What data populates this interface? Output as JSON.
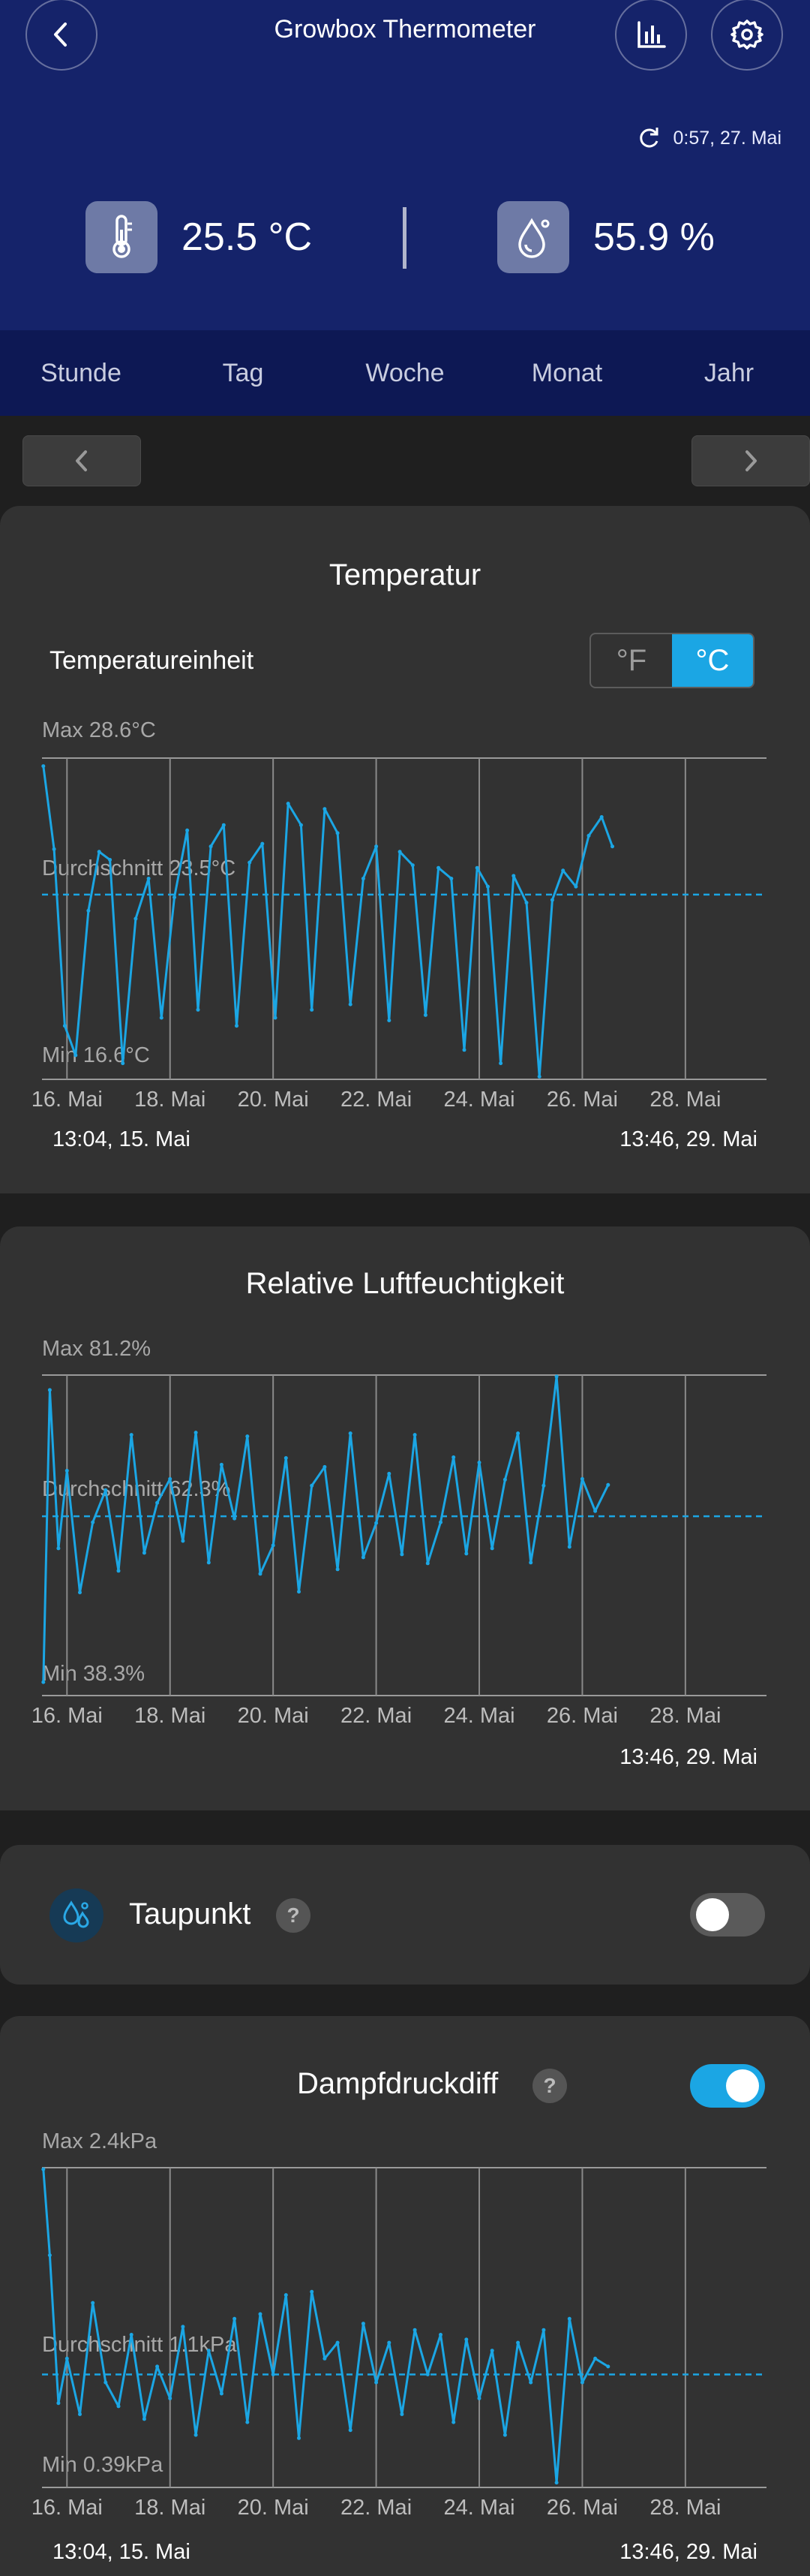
{
  "header": {
    "title": "Growbox Thermometer",
    "sync_text": "0:57,  27. Mai",
    "temperature": "25.5 °C",
    "humidity": "55.9 %",
    "icons": {
      "back": "back-arrow-icon",
      "stats": "bar-chart-icon",
      "settings": "gear-icon",
      "sync": "refresh-icon",
      "thermo": "thermometer-icon",
      "drop": "droplet-icon"
    }
  },
  "tabs": [
    "Stunde",
    "Tag",
    "Woche",
    "Monat",
    "Jahr"
  ],
  "colors": {
    "header": "#15236a",
    "tabs": "#0d1854",
    "accent": "#1ba6e4",
    "card": "#323232",
    "background": "#1f1f1f"
  },
  "temperature_card": {
    "title": "Temperatur",
    "unit_label": "Temperatureinheit",
    "unit_options": [
      "°F",
      "°C"
    ],
    "unit_selected": "°C",
    "max_label": "Max 28.6°C",
    "avg_label": "Durchschnitt 23.5°C",
    "min_label": "Min 16.6°C",
    "start": "13:04,  15. Mai",
    "end": "13:46,  29. Mai"
  },
  "humidity_card": {
    "title": "Relative Luftfeuchtigkeit",
    "max_label": "Max 81.2%",
    "avg_label": "Durchschnitt 62.3%",
    "min_label": "Min 38.3%",
    "end": "13:46,  29. Mai"
  },
  "dewpoint_card": {
    "title": "Taupunkt",
    "help": "?",
    "enabled": false
  },
  "vpd_card": {
    "title": "Dampfdruckdiff",
    "help": "?",
    "enabled": true,
    "max_label": "Max 2.4kPa",
    "avg_label": "Durchschnitt 1.1kPa",
    "min_label": "Min 0.39kPa",
    "start": "13:04,  15. Mai",
    "end": "13:46,  29. Mai"
  },
  "chart_data": [
    {
      "type": "line",
      "title": "Temperatur",
      "x_tick_labels": [
        "16. Mai",
        "18. Mai",
        "20. Mai",
        "22. Mai",
        "24. Mai",
        "26. Mai",
        "28. Mai"
      ],
      "x_range": [
        "2024-05-15 13:04",
        "2024-05-29 13:46"
      ],
      "ylim": [
        16.6,
        28.6
      ],
      "average": 23.5,
      "series": [
        {
          "x": [
            "15. Mai 13:00",
            "15. Mai 18:00",
            "15. Mai 23:00",
            "16. Mai 04:00",
            "16. Mai 10:00",
            "16. Mai 15:00",
            "16. Mai 20:00",
            "17. Mai 02:00",
            "17. Mai 08:00",
            "17. Mai 14:00",
            "17. Mai 20:00",
            "18. Mai 02:00",
            "18. Mai 08:00",
            "18. Mai 13:00",
            "18. Mai 19:00",
            "19. Mai 01:00",
            "19. Mai 07:00",
            "19. Mai 13:00",
            "19. Mai 19:00",
            "20. Mai 01:00",
            "20. Mai 07:00",
            "20. Mai 13:00",
            "20. Mai 18:00",
            "21. Mai 00:00",
            "21. Mai 06:00",
            "21. Mai 12:00",
            "21. Mai 18:00",
            "22. Mai 00:00",
            "22. Mai 06:00",
            "22. Mai 11:00",
            "22. Mai 17:00",
            "22. Mai 23:00",
            "23. Mai 05:00",
            "23. Mai 11:00",
            "23. Mai 17:00",
            "23. Mai 23:00",
            "24. Mai 04:00",
            "24. Mai 10:00",
            "24. Mai 16:00",
            "24. Mai 22:00",
            "25. Mai 04:00",
            "25. Mai 10:00",
            "25. Mai 15:00",
            "25. Mai 21:00",
            "26. Mai 03:00",
            "26. Mai 09:00",
            "26. Mai 14:00"
          ],
          "y": [
            28.3,
            25.2,
            18.6,
            17.5,
            22.9,
            25.1,
            24.8,
            17.2,
            22.6,
            24.1,
            18.9,
            23.4,
            25.9,
            19.2,
            25.3,
            26.1,
            18.6,
            24.7,
            25.4,
            18.9,
            26.9,
            26.1,
            19.2,
            26.7,
            25.8,
            19.4,
            24.1,
            25.3,
            18.8,
            25.1,
            24.6,
            19.0,
            24.5,
            24.1,
            17.7,
            24.5,
            23.8,
            17.2,
            24.2,
            23.2,
            16.7,
            23.3,
            24.4,
            23.8,
            25.7,
            26.4,
            25.3
          ]
        }
      ]
    },
    {
      "type": "line",
      "title": "Relative Luftfeuchtigkeit",
      "x_tick_labels": [
        "16. Mai",
        "18. Mai",
        "20. Mai",
        "22. Mai",
        "24. Mai",
        "26. Mai",
        "28. Mai"
      ],
      "x_range": [
        "2024-05-15 13:04",
        "2024-05-29 13:46"
      ],
      "ylim": [
        38.3,
        81.2
      ],
      "average": 62.3,
      "series": [
        {
          "x": [
            "15. Mai 13:00",
            "15. Mai 16:00",
            "15. Mai 20:00",
            "16. Mai 00:00",
            "16. Mai 06:00",
            "16. Mai 12:00",
            "16. Mai 18:00",
            "17. Mai 00:00",
            "17. Mai 06:00",
            "17. Mai 12:00",
            "17. Mai 18:00",
            "18. Mai 00:00",
            "18. Mai 06:00",
            "18. Mai 12:00",
            "18. Mai 18:00",
            "19. Mai 00:00",
            "19. Mai 06:00",
            "19. Mai 12:00",
            "19. Mai 18:00",
            "20. Mai 00:00",
            "20. Mai 06:00",
            "20. Mai 12:00",
            "20. Mai 18:00",
            "21. Mai 00:00",
            "21. Mai 06:00",
            "21. Mai 12:00",
            "21. Mai 18:00",
            "22. Mai 00:00",
            "22. Mai 06:00",
            "22. Mai 12:00",
            "22. Mai 18:00",
            "23. Mai 00:00",
            "23. Mai 06:00",
            "23. Mai 12:00",
            "23. Mai 18:00",
            "24. Mai 00:00",
            "24. Mai 06:00",
            "24. Mai 12:00",
            "24. Mai 18:00",
            "25. Mai 00:00",
            "25. Mai 06:00",
            "25. Mai 12:00",
            "25. Mai 18:00",
            "26. Mai 00:00",
            "26. Mai 06:00",
            "26. Mai 12:00"
          ],
          "y": [
            40.1,
            79.2,
            58.0,
            68.4,
            52.1,
            61.5,
            65.8,
            55.0,
            73.2,
            57.4,
            64.1,
            67.3,
            59.0,
            73.5,
            56.1,
            69.2,
            62.0,
            73.0,
            54.6,
            58.4,
            70.1,
            52.2,
            66.4,
            68.9,
            55.2,
            73.4,
            56.8,
            61.4,
            68.0,
            57.2,
            73.2,
            56.0,
            61.5,
            70.2,
            57.3,
            69.5,
            58.0,
            67.2,
            73.4,
            56.1,
            66.4,
            81.0,
            58.2,
            67.3,
            63.0,
            66.5
          ]
        }
      ]
    },
    {
      "type": "line",
      "title": "Dampfdruckdiff",
      "x_tick_labels": [
        "16. Mai",
        "18. Mai",
        "20. Mai",
        "22. Mai",
        "24. Mai",
        "26. Mai",
        "28. Mai"
      ],
      "x_range": [
        "2024-05-15 13:04",
        "2024-05-29 13:46"
      ],
      "ylim": [
        0.39,
        2.4
      ],
      "average": 1.1,
      "series": [
        {
          "x": [
            "15. Mai 13:00",
            "15. Mai 16:00",
            "15. Mai 20:00",
            "16. Mai 00:00",
            "16. Mai 06:00",
            "16. Mai 12:00",
            "16. Mai 18:00",
            "17. Mai 00:00",
            "17. Mai 06:00",
            "17. Mai 12:00",
            "17. Mai 18:00",
            "18. Mai 00:00",
            "18. Mai 06:00",
            "18. Mai 12:00",
            "18. Mai 18:00",
            "19. Mai 00:00",
            "19. Mai 06:00",
            "19. Mai 12:00",
            "19. Mai 18:00",
            "20. Mai 00:00",
            "20. Mai 06:00",
            "20. Mai 12:00",
            "20. Mai 18:00",
            "21. Mai 00:00",
            "21. Mai 06:00",
            "21. Mai 12:00",
            "21. Mai 18:00",
            "22. Mai 00:00",
            "22. Mai 06:00",
            "22. Mai 12:00",
            "22. Mai 18:00",
            "23. Mai 00:00",
            "23. Mai 06:00",
            "23. Mai 12:00",
            "23. Mai 18:00",
            "24. Mai 00:00",
            "24. Mai 06:00",
            "24. Mai 12:00",
            "24. Mai 18:00",
            "25. Mai 00:00",
            "25. Mai 06:00",
            "25. Mai 12:00",
            "25. Mai 18:00",
            "26. Mai 00:00",
            "26. Mai 06:00",
            "26. Mai 12:00"
          ],
          "y": [
            2.39,
            1.85,
            0.92,
            1.2,
            0.85,
            1.55,
            1.05,
            0.9,
            1.35,
            0.82,
            1.15,
            0.95,
            1.4,
            0.72,
            1.25,
            0.98,
            1.45,
            0.8,
            1.48,
            1.1,
            1.6,
            0.7,
            1.62,
            1.2,
            1.3,
            0.75,
            1.42,
            1.05,
            1.3,
            0.85,
            1.38,
            1.1,
            1.35,
            0.8,
            1.32,
            0.95,
            1.25,
            0.72,
            1.3,
            1.05,
            1.38,
            0.42,
            1.45,
            1.05,
            1.2,
            1.15
          ]
        }
      ]
    }
  ]
}
